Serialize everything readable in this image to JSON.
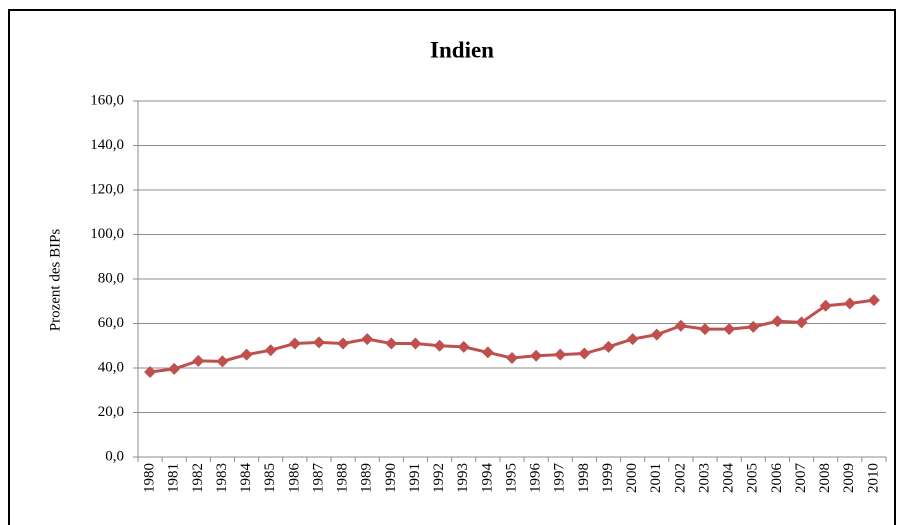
{
  "chart_data": {
    "type": "line",
    "title": "Indien",
    "y_label": "Prozent des BIPs",
    "categories": [
      "1980",
      "1981",
      "1982",
      "1983",
      "1984",
      "1985",
      "1986",
      "1987",
      "1988",
      "1989",
      "1990",
      "1991",
      "1992",
      "1993",
      "1994",
      "1995",
      "1996",
      "1997",
      "1998",
      "1999",
      "2000",
      "2001",
      "2002",
      "2003",
      "2004",
      "2005",
      "2006",
      "2007",
      "2008",
      "2009",
      "2010"
    ],
    "series": [
      {
        "name": "Indien",
        "color": "#c0504d",
        "values": [
          38.2,
          39.6,
          43.2,
          43,
          46,
          48,
          51,
          51.5,
          51,
          53,
          51,
          51,
          50,
          49.5,
          47,
          44.5,
          45.5,
          46,
          46.5,
          49.5,
          53,
          55,
          59,
          57.5,
          57.5,
          58.5,
          61,
          60.5,
          68,
          69,
          70.5
        ]
      }
    ],
    "ylim": [
      0,
      160
    ],
    "yticks": [
      {
        "value": 0,
        "label": "0,0"
      },
      {
        "value": 20,
        "label": "20,0"
      },
      {
        "value": 40,
        "label": "40,0"
      },
      {
        "value": 60,
        "label": "60,0"
      },
      {
        "value": 80,
        "label": "80,0"
      },
      {
        "value": 100,
        "label": "100,0"
      },
      {
        "value": 120,
        "label": "120,0"
      },
      {
        "value": 140,
        "label": "140,0"
      },
      {
        "value": 160,
        "label": "160,0"
      }
    ],
    "grid": true
  }
}
